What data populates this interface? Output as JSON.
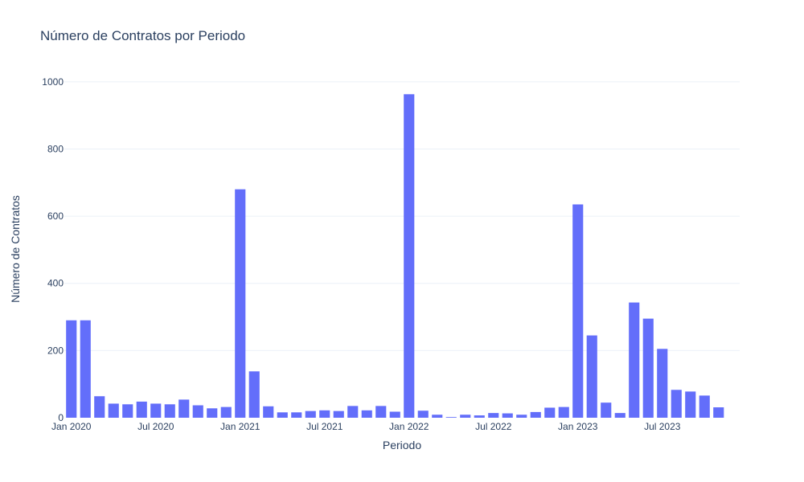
{
  "chart_data": {
    "type": "bar",
    "title": "Número de Contratos por Periodo",
    "xlabel": "Periodo",
    "ylabel": "Número de Contratos",
    "ylim": [
      0,
      1100
    ],
    "y_ticks": [
      0,
      200,
      400,
      600,
      800,
      1000
    ],
    "x_ticks": [
      {
        "index": 0,
        "label": "Jan 2020"
      },
      {
        "index": 6,
        "label": "Jul 2020"
      },
      {
        "index": 12,
        "label": "Jan 2021"
      },
      {
        "index": 18,
        "label": "Jul 2021"
      },
      {
        "index": 24,
        "label": "Jan 2022"
      },
      {
        "index": 30,
        "label": "Jul 2022"
      },
      {
        "index": 36,
        "label": "Jan 2023"
      },
      {
        "index": 42,
        "label": "Jul 2023"
      }
    ],
    "bar_color": "#636efa",
    "grid": true,
    "categories": [
      "2020-01",
      "2020-02",
      "2020-03",
      "2020-04",
      "2020-05",
      "2020-06",
      "2020-07",
      "2020-08",
      "2020-09",
      "2020-10",
      "2020-11",
      "2020-12",
      "2021-01",
      "2021-02",
      "2021-03",
      "2021-04",
      "2021-05",
      "2021-06",
      "2021-07",
      "2021-08",
      "2021-09",
      "2021-10",
      "2021-11",
      "2021-12",
      "2022-01",
      "2022-02",
      "2022-03",
      "2022-04",
      "2022-05",
      "2022-06",
      "2022-07",
      "2022-08",
      "2022-09",
      "2022-10",
      "2022-11",
      "2022-12",
      "2023-01",
      "2023-02",
      "2023-03",
      "2023-04",
      "2023-05",
      "2023-06",
      "2023-07",
      "2023-08",
      "2023-09",
      "2023-10",
      "2023-11",
      "2023-12"
    ],
    "values": [
      290,
      290,
      64,
      42,
      40,
      48,
      42,
      40,
      54,
      37,
      28,
      32,
      680,
      138,
      34,
      16,
      16,
      20,
      22,
      20,
      35,
      22,
      35,
      18,
      963,
      21,
      9,
      2,
      9,
      7,
      14,
      13,
      9,
      17,
      30,
      32,
      635,
      245,
      45,
      14,
      343,
      295,
      205,
      83,
      78,
      66,
      31,
      0
    ]
  }
}
